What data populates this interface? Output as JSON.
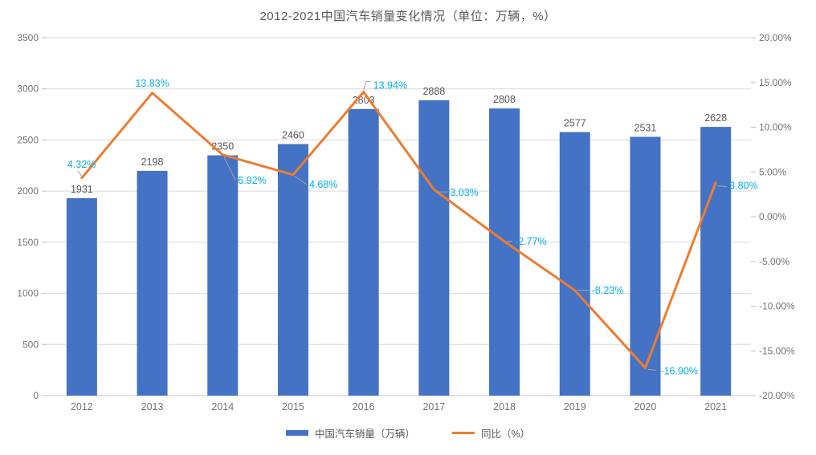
{
  "chart_data": {
    "type": "combo-bar-line",
    "title": "2012-2021中国汽车销量变化情况（单位：万辆，%）",
    "categories": [
      "2012",
      "2013",
      "2014",
      "2015",
      "2016",
      "2017",
      "2018",
      "2019",
      "2020",
      "2021"
    ],
    "series": [
      {
        "name": "中国汽车销量（万辆）",
        "type": "bar",
        "color": "#4472C4",
        "values": [
          1931,
          2198,
          2350,
          2460,
          2803,
          2888,
          2808,
          2577,
          2531,
          2628
        ],
        "label_color": "#595959"
      },
      {
        "name": "同比（%）",
        "type": "line",
        "color": "#ED7D31",
        "values": [
          4.32,
          13.83,
          6.92,
          4.68,
          13.94,
          3.03,
          -2.77,
          -8.23,
          -16.9,
          3.8
        ],
        "labels": [
          "4.32%",
          "13.83%",
          "6.92%",
          "4.68%",
          "13.94%",
          "3.03%",
          "-2.77%",
          "-8.23%",
          "-16.90%",
          "3.80%"
        ],
        "label_color": "#00B0F0"
      }
    ],
    "axes": {
      "left": {
        "min": 0,
        "max": 3500,
        "ticks": [
          "3500",
          "3000",
          "2500",
          "2000",
          "1500",
          "1000",
          "500",
          "0"
        ]
      },
      "right": {
        "min": -20,
        "max": 20,
        "ticks": [
          "20.00%",
          "15.00%",
          "10.00%",
          "5.00%",
          "0.00%",
          "-5.00%",
          "-10.00%",
          "-15.00%",
          "-20.00%"
        ]
      }
    },
    "legend": {
      "position": "bottom"
    },
    "style": {
      "gridline_color": "#D9D9D9",
      "axis_line_color": "#C6C6C6",
      "tick_color": "#BFBFBF",
      "axis_label_color": "#737373",
      "leader_line_color": "#A6A6A6",
      "background": "#FFFFFF"
    },
    "grid": true
  }
}
